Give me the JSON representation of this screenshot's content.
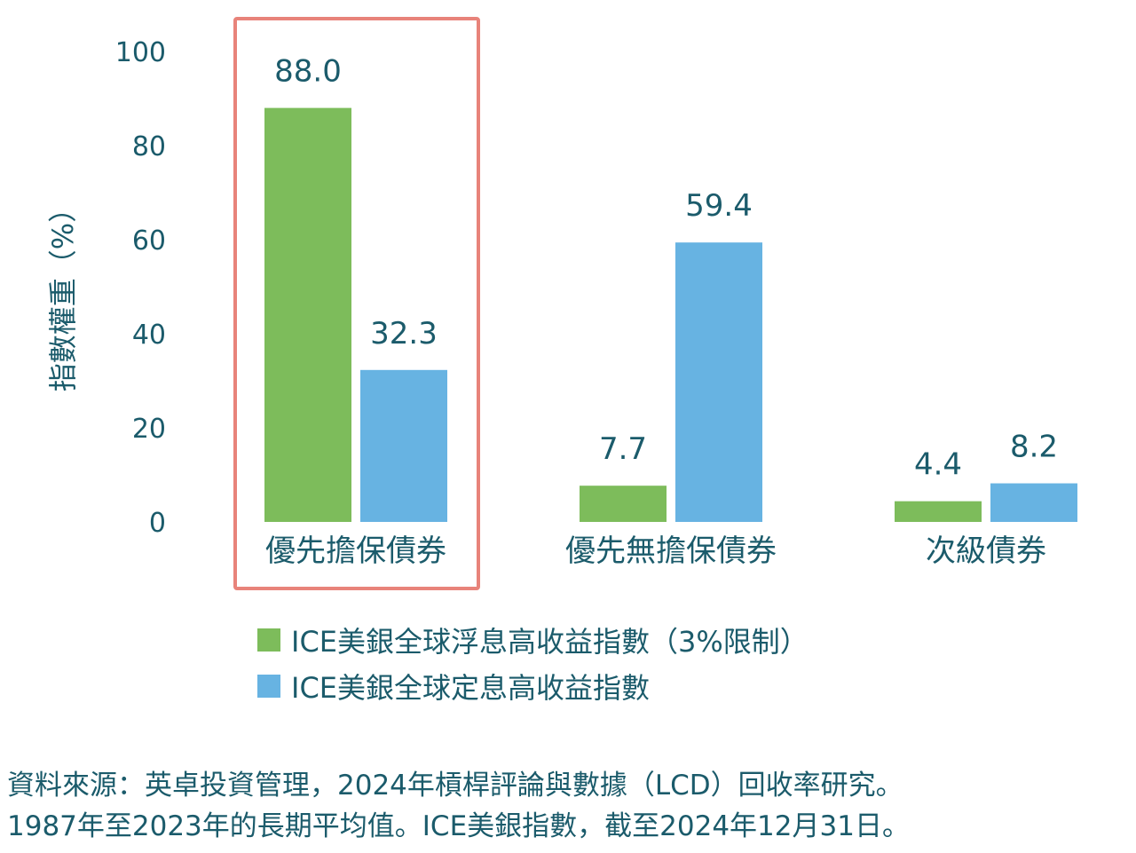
{
  "chart_data": {
    "type": "bar",
    "categories": [
      "優先擔保債券",
      "優先無擔保債券",
      "次級債券"
    ],
    "series": [
      {
        "name": "ICE美銀全球浮息高收益指數（3%限制）",
        "values": [
          88.0,
          7.7,
          4.4
        ],
        "color": "#7dbc5b"
      },
      {
        "name": "ICE美銀全球定息高收益指數",
        "values": [
          32.3,
          59.4,
          8.2
        ],
        "color": "#67b3e2"
      }
    ],
    "value_labels": [
      [
        "88.0",
        "7.7",
        "4.4"
      ],
      [
        "32.3",
        "59.4",
        "8.2"
      ]
    ],
    "ylabel": "指數權重（%）",
    "xlabel": "",
    "ylim": [
      0,
      100
    ],
    "yticks": [
      "0",
      "20",
      "40",
      "60",
      "80",
      "100"
    ],
    "grid": false,
    "legend_position": "bottom",
    "highlighted_category": "優先擔保債券",
    "highlight_color": "#e8837a"
  },
  "source_note": {
    "line1": "資料來源：英卓投資管理，2024年槓桿評論與數據（LCD）回收率研究。",
    "line2": "1987年至2023年的長期平均值。ICE美銀指數，截至2024年12月31日。"
  }
}
